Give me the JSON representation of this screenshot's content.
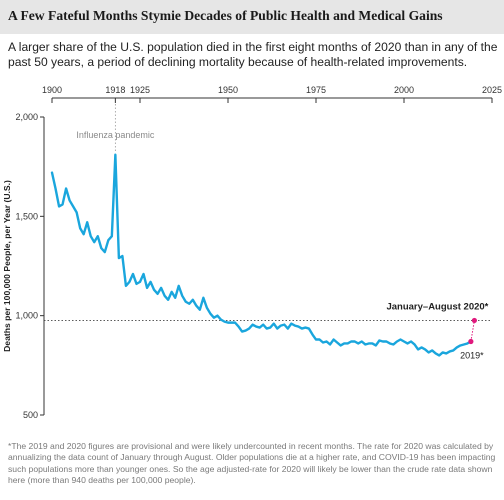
{
  "page": {
    "title": "A Few Fateful Months Stymie Decades of Public Health and Medical Gains",
    "subtitle": "A larger share of the U.S. population died in the first eight months of 2020 than in any of the past 50 years, a period of declining mortality because of health-related improvements.",
    "footnote": "*The 2019 and 2020 figures are provisional and were likely undercounted in recent months. The rate for 2020 was calculated by annualizing the data count of January through August. Older populations die at a higher rate, and COVID-19 has been impacting such populations more than younger ones. So the age adjusted-rate for 2020 will likely be lower than the crude rate data shown here (more than 940 deaths per 100,000 people)."
  },
  "colors": {
    "line": "#1aa6dd",
    "marker": "#e0197d",
    "title_bg": "#e6e6e6"
  },
  "chart_data": {
    "type": "line",
    "title": "",
    "xlabel": "",
    "ylabel": "Deaths per 100,000 People, per Year (U.S.)",
    "xlim": [
      1900,
      2025
    ],
    "ylim": [
      500,
      2000
    ],
    "x_ticks": [
      {
        "value": 1900,
        "label": "1900"
      },
      {
        "value": 1918,
        "label": "1918"
      },
      {
        "value": 1925,
        "label": "1925"
      },
      {
        "value": 1950,
        "label": "1950"
      },
      {
        "value": 1975,
        "label": "1975"
      },
      {
        "value": 2000,
        "label": "2000"
      },
      {
        "value": 2025,
        "label": "2025"
      }
    ],
    "y_ticks": [
      {
        "value": 500,
        "label": "500"
      },
      {
        "value": 1000,
        "label": "1,000"
      },
      {
        "value": 1500,
        "label": "1,500"
      },
      {
        "value": 2000,
        "label": "2,000"
      }
    ],
    "grid": false,
    "legend": "none",
    "series": [
      {
        "x": [
          1900,
          1901,
          1902,
          1903,
          1904,
          1905,
          1906,
          1907,
          1908,
          1909,
          1910,
          1911,
          1912,
          1913,
          1914,
          1915,
          1916,
          1917,
          1918,
          1919,
          1920,
          1921,
          1922,
          1923,
          1924,
          1925,
          1926,
          1927,
          1928,
          1929,
          1930,
          1931,
          1932,
          1933,
          1934,
          1935,
          1936,
          1937,
          1938,
          1939,
          1940,
          1941,
          1942,
          1943,
          1944,
          1945,
          1946,
          1947,
          1948,
          1949,
          1950,
          1951,
          1952,
          1953,
          1954,
          1955,
          1956,
          1957,
          1958,
          1959,
          1960,
          1961,
          1962,
          1963,
          1964,
          1965,
          1966,
          1967,
          1968,
          1969,
          1970,
          1971,
          1972,
          1973,
          1974,
          1975,
          1976,
          1977,
          1978,
          1979,
          1980,
          1981,
          1982,
          1983,
          1984,
          1985,
          1986,
          1987,
          1988,
          1989,
          1990,
          1991,
          1992,
          1993,
          1994,
          1995,
          1996,
          1997,
          1998,
          1999,
          2000,
          2001,
          2002,
          2003,
          2004,
          2005,
          2006,
          2007,
          2008,
          2009,
          2010,
          2011,
          2012,
          2013,
          2014,
          2015,
          2016,
          2017,
          2018,
          2019
        ],
        "y": [
          1720,
          1640,
          1550,
          1560,
          1640,
          1580,
          1550,
          1520,
          1440,
          1410,
          1470,
          1400,
          1370,
          1400,
          1340,
          1320,
          1380,
          1400,
          1810,
          1290,
          1300,
          1150,
          1170,
          1210,
          1160,
          1170,
          1210,
          1140,
          1170,
          1130,
          1110,
          1140,
          1100,
          1080,
          1120,
          1090,
          1150,
          1100,
          1070,
          1060,
          1080,
          1050,
          1030,
          1090,
          1040,
          1010,
          990,
          1000,
          980,
          970,
          965,
          965,
          965,
          945,
          920,
          925,
          935,
          955,
          945,
          940,
          955,
          935,
          940,
          960,
          935,
          950,
          955,
          935,
          960,
          950,
          945,
          935,
          940,
          935,
          905,
          880,
          880,
          865,
          870,
          855,
          880,
          865,
          850,
          860,
          860,
          870,
          870,
          860,
          870,
          855,
          860,
          860,
          850,
          875,
          870,
          870,
          860,
          855,
          870,
          880,
          870,
          860,
          870,
          855,
          830,
          840,
          830,
          815,
          825,
          810,
          800,
          815,
          810,
          820,
          825,
          840,
          850,
          855,
          860,
          870
        ]
      }
    ],
    "annotations": [
      {
        "text": "Influenza pandemic",
        "x": 1918,
        "y": 1810
      },
      {
        "text": "January–August 2020*",
        "x": 2020,
        "y": 976
      },
      {
        "text": "2019*",
        "x": 2019,
        "y": 870
      }
    ],
    "reference_line": {
      "y": 976
    }
  }
}
